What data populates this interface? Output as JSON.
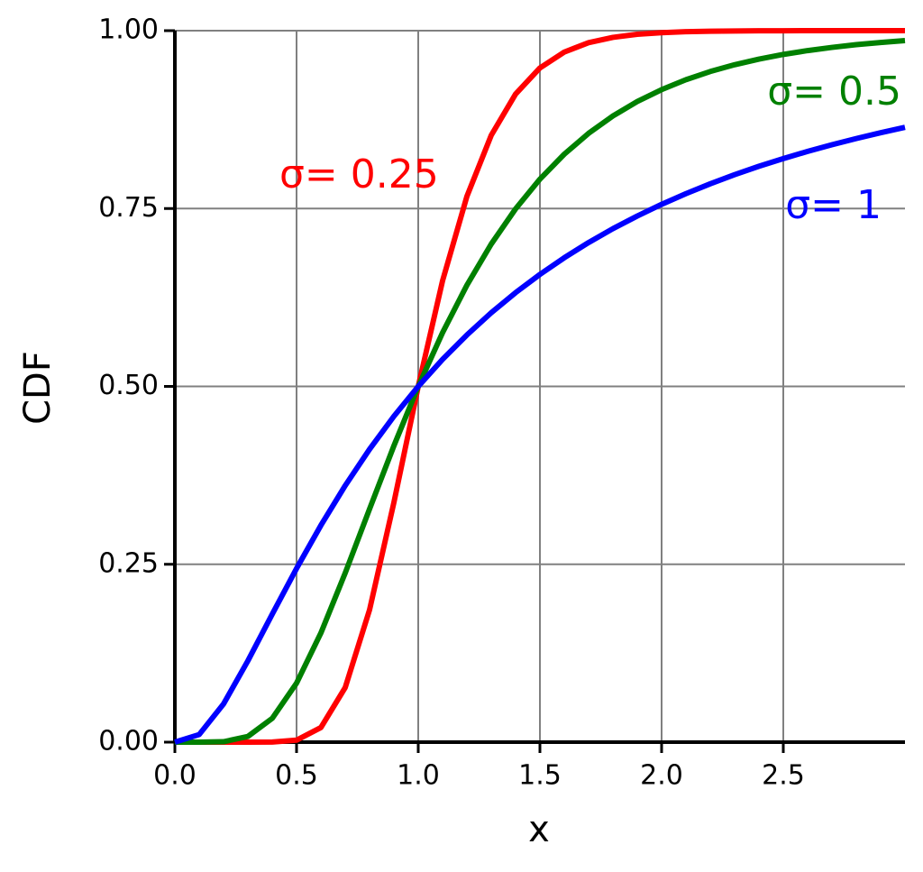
{
  "chart_data": {
    "type": "line",
    "xlabel": "x",
    "ylabel": "CDF",
    "x": [
      0,
      0.1,
      0.2,
      0.3,
      0.4,
      0.5,
      0.6,
      0.7,
      0.8,
      0.9,
      1.0,
      1.1,
      1.2,
      1.3,
      1.4,
      1.5,
      1.6,
      1.7,
      1.8,
      1.9,
      2.0,
      2.1,
      2.2,
      2.3,
      2.4,
      2.5,
      2.6,
      2.7,
      2.8,
      2.9,
      3.0
    ],
    "series": [
      {
        "name": "σ= 0.25",
        "color": "#ff0000",
        "values": [
          0,
          0,
          0,
          0,
          0.0001,
          0.0028,
          0.0205,
          0.0768,
          0.186,
          0.3368,
          0.5,
          0.6485,
          0.7671,
          0.853,
          0.9109,
          0.9476,
          0.9699,
          0.9831,
          0.9906,
          0.9949,
          0.9972,
          0.9985,
          0.9992,
          0.9996,
          0.9998,
          0.9999,
          1,
          1,
          1,
          1,
          1
        ]
      },
      {
        "name": "σ= 0.5",
        "color": "#008000",
        "values": [
          0,
          0,
          0.0006,
          0.008,
          0.0334,
          0.0829,
          0.1534,
          0.2378,
          0.3277,
          0.4165,
          0.5,
          0.5756,
          0.6423,
          0.7001,
          0.7495,
          0.7913,
          0.8264,
          0.8557,
          0.8801,
          0.9004,
          0.9171,
          0.9311,
          0.9426,
          0.9521,
          0.96,
          0.9666,
          0.972,
          0.9765,
          0.9803,
          0.9834,
          0.986
        ]
      },
      {
        "name": "σ= 1",
        "color": "#0000ff",
        "values": [
          0,
          0.0107,
          0.0537,
          0.1143,
          0.1798,
          0.2441,
          0.3047,
          0.3606,
          0.4117,
          0.458,
          0.5,
          0.538,
          0.5723,
          0.6035,
          0.6318,
          0.6574,
          0.6808,
          0.7022,
          0.7217,
          0.7395,
          0.7559,
          0.7709,
          0.7848,
          0.7976,
          0.8094,
          0.8202,
          0.8303,
          0.8397,
          0.8484,
          0.8565,
          0.8641
        ]
      }
    ],
    "xlim": [
      0,
      3
    ],
    "ylim": [
      0,
      1
    ],
    "xticks": [
      {
        "value": 0,
        "label": "0.0"
      },
      0.5,
      {
        "value": 1,
        "label": "1.0"
      },
      1.5,
      {
        "value": 2,
        "label": "2.0"
      },
      2.5
    ],
    "yticks": [
      {
        "value": 0,
        "label": "0.00"
      },
      {
        "value": 0.25,
        "label": "0.25"
      },
      {
        "value": 0.5,
        "label": "0.50"
      },
      {
        "value": 0.75,
        "label": "0.75"
      },
      {
        "value": 1,
        "label": "1.00"
      }
    ],
    "grid": true
  }
}
